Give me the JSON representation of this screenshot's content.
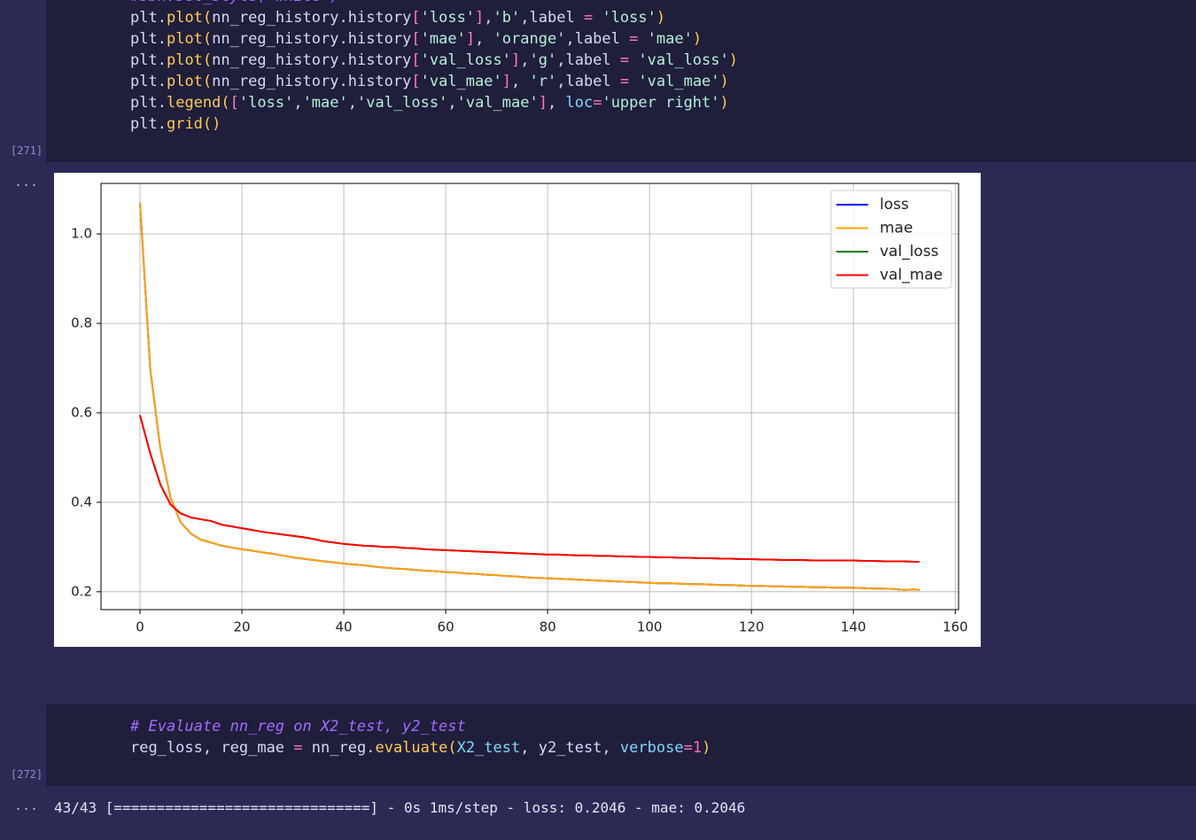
{
  "cells": [
    {
      "execution_count": "[271]",
      "output_prompt": "...",
      "code": [
        "#sbn.set_style('white')",
        "plt.plot(nn_reg_history.history['loss'],'b',label = 'loss')",
        "plt.plot(nn_reg_history.history['mae'], 'orange',label = 'mae')",
        "plt.plot(nn_reg_history.history['val_loss'],'g',label = 'val_loss')",
        "plt.plot(nn_reg_history.history['val_mae'], 'r',label = 'val_mae')",
        "plt.legend(['loss','mae','val_loss','val_mae'], loc='upper right')",
        "plt.grid()"
      ]
    },
    {
      "execution_count": "[272]",
      "output_prompt": "...",
      "code": [
        "# Evaluate nn_reg on X2_test, y2_test",
        "reg_loss, reg_mae = nn_reg.evaluate(X2_test, y2_test, verbose=1)"
      ],
      "output": "43/43 [==============================] - 0s 1ms/step - loss: 0.2046 - mae: 0.2046"
    }
  ],
  "chart_data": {
    "type": "line",
    "grid": true,
    "legend": "upper right",
    "xlim": [
      -7.65,
      160.65
    ],
    "xticks": [
      0,
      20,
      40,
      60,
      80,
      100,
      120,
      140,
      160
    ],
    "ylim": [
      0.16,
      1.113
    ],
    "yticks": [
      0.2,
      0.4,
      0.6,
      0.8,
      {
        "value": 1,
        "label": "1.0"
      }
    ],
    "x": [
      0,
      2,
      4,
      6,
      8,
      10,
      12,
      14,
      16,
      18,
      20,
      22,
      24,
      26,
      28,
      30,
      32,
      34,
      36,
      38,
      40,
      42,
      44,
      46,
      48,
      50,
      52,
      54,
      56,
      58,
      60,
      62,
      64,
      66,
      68,
      70,
      72,
      74,
      76,
      78,
      80,
      82,
      84,
      86,
      88,
      90,
      92,
      94,
      96,
      98,
      100,
      102,
      104,
      106,
      108,
      110,
      112,
      114,
      116,
      118,
      120,
      122,
      124,
      126,
      128,
      130,
      132,
      134,
      136,
      138,
      140,
      142,
      144,
      146,
      148,
      150,
      152,
      153
    ],
    "series": [
      {
        "name": "loss",
        "color": "#0000ff",
        "values": [
          1.07,
          0.7,
          0.52,
          0.41,
          0.355,
          0.33,
          0.316,
          0.31,
          0.303,
          0.299,
          0.295,
          0.292,
          0.288,
          0.285,
          0.281,
          0.277,
          0.274,
          0.271,
          0.268,
          0.266,
          0.263,
          0.261,
          0.259,
          0.256,
          0.254,
          0.252,
          0.251,
          0.249,
          0.247,
          0.246,
          0.244,
          0.243,
          0.241,
          0.24,
          0.238,
          0.237,
          0.235,
          0.234,
          0.232,
          0.231,
          0.23,
          0.229,
          0.228,
          0.227,
          0.226,
          0.225,
          0.224,
          0.223,
          0.222,
          0.221,
          0.22,
          0.219,
          0.219,
          0.218,
          0.217,
          0.217,
          0.216,
          0.215,
          0.215,
          0.214,
          0.213,
          0.213,
          0.212,
          0.212,
          0.211,
          0.211,
          0.21,
          0.21,
          0.209,
          0.209,
          0.209,
          0.208,
          0.207,
          0.207,
          0.206,
          0.204,
          0.205,
          0.204
        ]
      },
      {
        "name": "mae",
        "color": "#ffa500",
        "values": [
          1.07,
          0.7,
          0.52,
          0.41,
          0.355,
          0.33,
          0.316,
          0.31,
          0.303,
          0.299,
          0.295,
          0.292,
          0.288,
          0.285,
          0.281,
          0.277,
          0.274,
          0.271,
          0.268,
          0.266,
          0.263,
          0.261,
          0.259,
          0.256,
          0.254,
          0.252,
          0.251,
          0.249,
          0.247,
          0.246,
          0.244,
          0.243,
          0.241,
          0.24,
          0.238,
          0.237,
          0.235,
          0.234,
          0.232,
          0.231,
          0.23,
          0.229,
          0.228,
          0.227,
          0.226,
          0.225,
          0.224,
          0.223,
          0.222,
          0.221,
          0.22,
          0.219,
          0.219,
          0.218,
          0.217,
          0.217,
          0.216,
          0.215,
          0.215,
          0.214,
          0.213,
          0.213,
          0.212,
          0.212,
          0.211,
          0.211,
          0.21,
          0.21,
          0.209,
          0.209,
          0.209,
          0.208,
          0.207,
          0.207,
          0.206,
          0.204,
          0.205,
          0.204
        ]
      },
      {
        "name": "val_loss",
        "color": "#008000",
        "values": [
          0.595,
          0.51,
          0.44,
          0.395,
          0.375,
          0.366,
          0.362,
          0.358,
          0.35,
          0.346,
          0.342,
          0.338,
          0.334,
          0.331,
          0.328,
          0.325,
          0.322,
          0.318,
          0.313,
          0.31,
          0.307,
          0.305,
          0.303,
          0.302,
          0.3,
          0.3,
          0.298,
          0.297,
          0.295,
          0.294,
          0.293,
          0.292,
          0.291,
          0.29,
          0.289,
          0.288,
          0.287,
          0.286,
          0.285,
          0.284,
          0.283,
          0.283,
          0.282,
          0.281,
          0.281,
          0.28,
          0.28,
          0.279,
          0.279,
          0.278,
          0.278,
          0.277,
          0.277,
          0.276,
          0.276,
          0.275,
          0.275,
          0.274,
          0.274,
          0.273,
          0.273,
          0.272,
          0.272,
          0.271,
          0.271,
          0.271,
          0.27,
          0.27,
          0.27,
          0.27,
          0.27,
          0.269,
          0.269,
          0.268,
          0.268,
          0.268,
          0.267,
          0.267
        ]
      },
      {
        "name": "val_mae",
        "color": "#ff0000",
        "values": [
          0.595,
          0.51,
          0.44,
          0.395,
          0.375,
          0.366,
          0.362,
          0.358,
          0.35,
          0.346,
          0.342,
          0.338,
          0.334,
          0.331,
          0.328,
          0.325,
          0.322,
          0.318,
          0.313,
          0.31,
          0.307,
          0.305,
          0.303,
          0.302,
          0.3,
          0.3,
          0.298,
          0.297,
          0.295,
          0.294,
          0.293,
          0.292,
          0.291,
          0.29,
          0.289,
          0.288,
          0.287,
          0.286,
          0.285,
          0.284,
          0.283,
          0.283,
          0.282,
          0.281,
          0.281,
          0.28,
          0.28,
          0.279,
          0.279,
          0.278,
          0.278,
          0.277,
          0.277,
          0.276,
          0.276,
          0.275,
          0.275,
          0.274,
          0.274,
          0.273,
          0.273,
          0.272,
          0.272,
          0.271,
          0.271,
          0.271,
          0.27,
          0.27,
          0.27,
          0.27,
          0.27,
          0.269,
          0.269,
          0.268,
          0.268,
          0.268,
          0.267,
          0.267
        ]
      }
    ]
  }
}
